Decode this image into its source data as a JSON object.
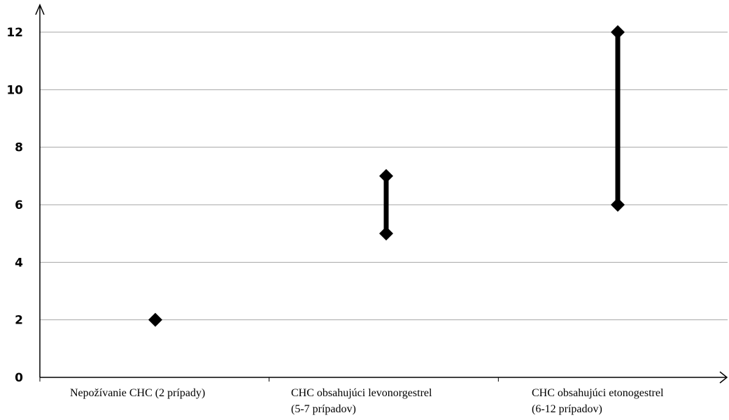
{
  "chart_data": {
    "type": "range",
    "categories": [
      [
        "Nepožívanie CHC (2 prípady)"
      ],
      [
        "CHC obsahujúci levonorgestrel",
        "(5-7 prípadov)"
      ],
      [
        "CHC obsahujúci etonogestrel",
        "(6-12 prípadov)"
      ]
    ],
    "ranges": [
      {
        "low": 2,
        "high": 2
      },
      {
        "low": 5,
        "high": 7
      },
      {
        "low": 6,
        "high": 12
      }
    ],
    "yticks": [
      0,
      2,
      4,
      6,
      8,
      10,
      12
    ],
    "ylim": [
      0,
      12
    ],
    "grid": true,
    "colors": {
      "marker": "#000000",
      "grid": "#a6a6a6",
      "axis": "#000000"
    }
  }
}
